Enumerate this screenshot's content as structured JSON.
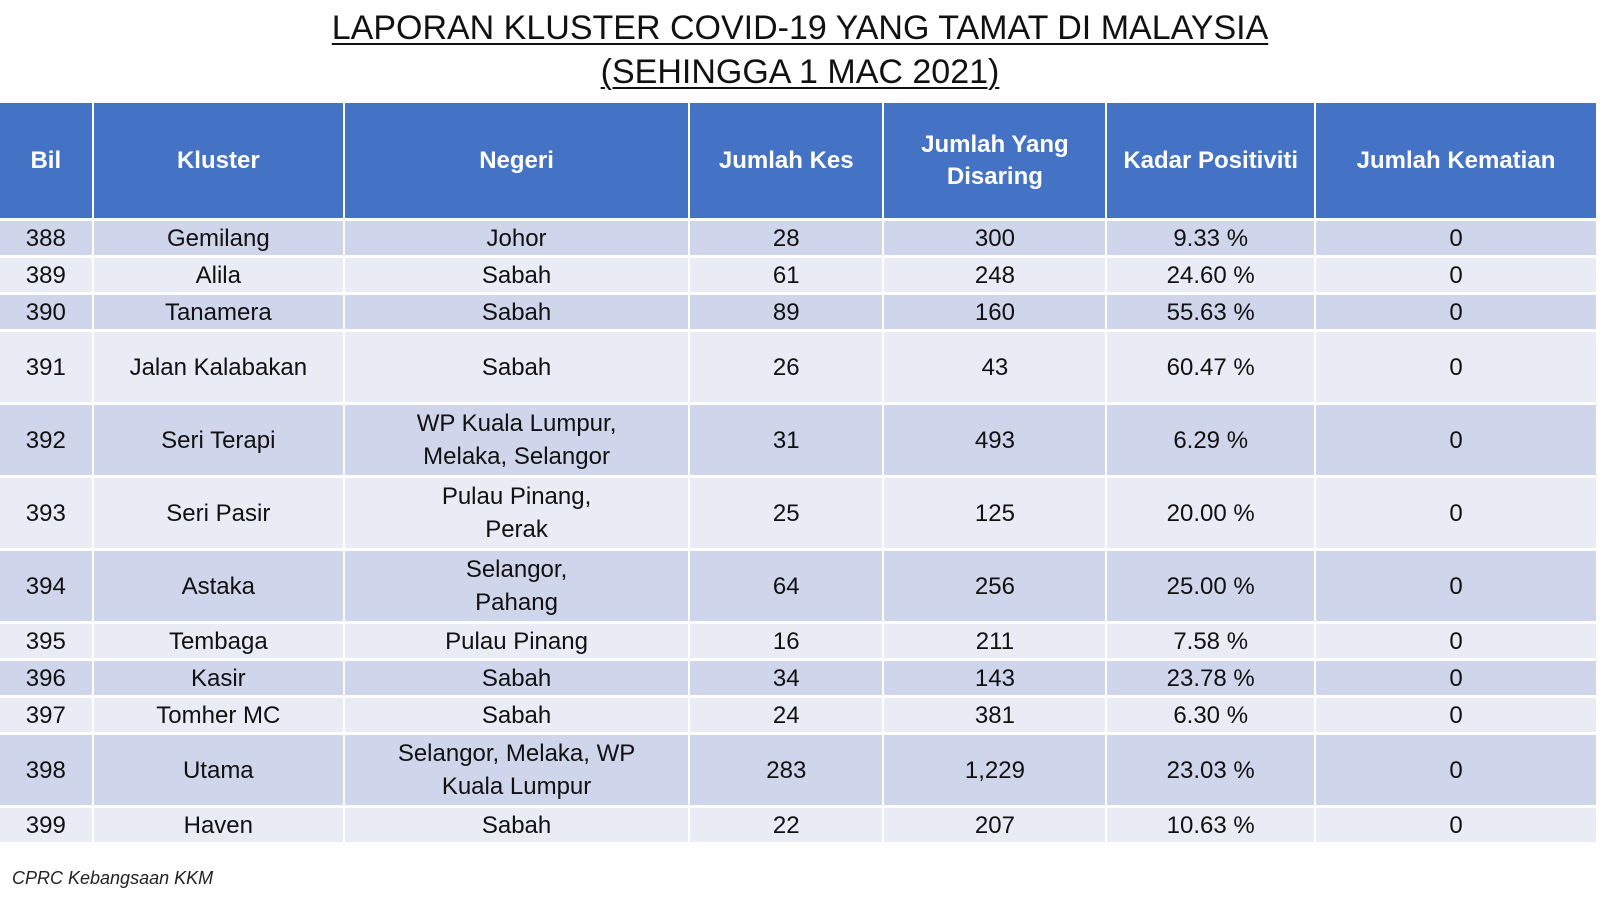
{
  "title": {
    "line1": "LAPORAN KLUSTER COVID-19 YANG TAMAT DI MALAYSIA",
    "line2": "(SEHINGGA 1 MAC 2021)"
  },
  "colors": {
    "header": "#4472C4",
    "row_dark": "#CFD5EA",
    "row_light": "#E9EBF5"
  },
  "table": {
    "headers": [
      "Bil",
      "Kluster",
      "Negeri",
      "Jumlah Kes",
      "Jumlah Yang Disaring",
      "Kadar Positiviti",
      "Jumlah Kematian"
    ],
    "rows": [
      [
        "388",
        "Gemilang",
        "Johor",
        "28",
        "300",
        "9.33 %",
        "0"
      ],
      [
        "389",
        "Alila",
        "Sabah",
        "61",
        "248",
        "24.60 %",
        "0"
      ],
      [
        "390",
        "Tanamera",
        "Sabah",
        "89",
        "160",
        "55.63 %",
        "0"
      ],
      [
        "391",
        "Jalan Kalabakan",
        "Sabah",
        "26",
        "43",
        "60.47 %",
        "0"
      ],
      [
        "392",
        "Seri Terapi",
        "WP Kuala Lumpur, Melaka, Selangor",
        "31",
        "493",
        "6.29 %",
        "0"
      ],
      [
        "393",
        "Seri Pasir",
        "Pulau Pinang, Perak",
        "25",
        "125",
        "20.00 %",
        "0"
      ],
      [
        "394",
        "Astaka",
        "Selangor, Pahang",
        "64",
        "256",
        "25.00 %",
        "0"
      ],
      [
        "395",
        "Tembaga",
        "Pulau Pinang",
        "16",
        "211",
        "7.58 %",
        "0"
      ],
      [
        "396",
        "Kasir",
        "Sabah",
        "34",
        "143",
        "23.78 %",
        "0"
      ],
      [
        "397",
        "Tomher MC",
        "Sabah",
        "24",
        "381",
        "6.30 %",
        "0"
      ],
      [
        "398",
        "Utama",
        "Selangor, Melaka, WP Kuala Lumpur",
        "283",
        "1,229",
        "23.03 %",
        "0"
      ],
      [
        "399",
        "Haven",
        "Sabah",
        "22",
        "207",
        "10.63 %",
        "0"
      ]
    ]
  },
  "footer": "CPRC Kebangsaan KKM"
}
